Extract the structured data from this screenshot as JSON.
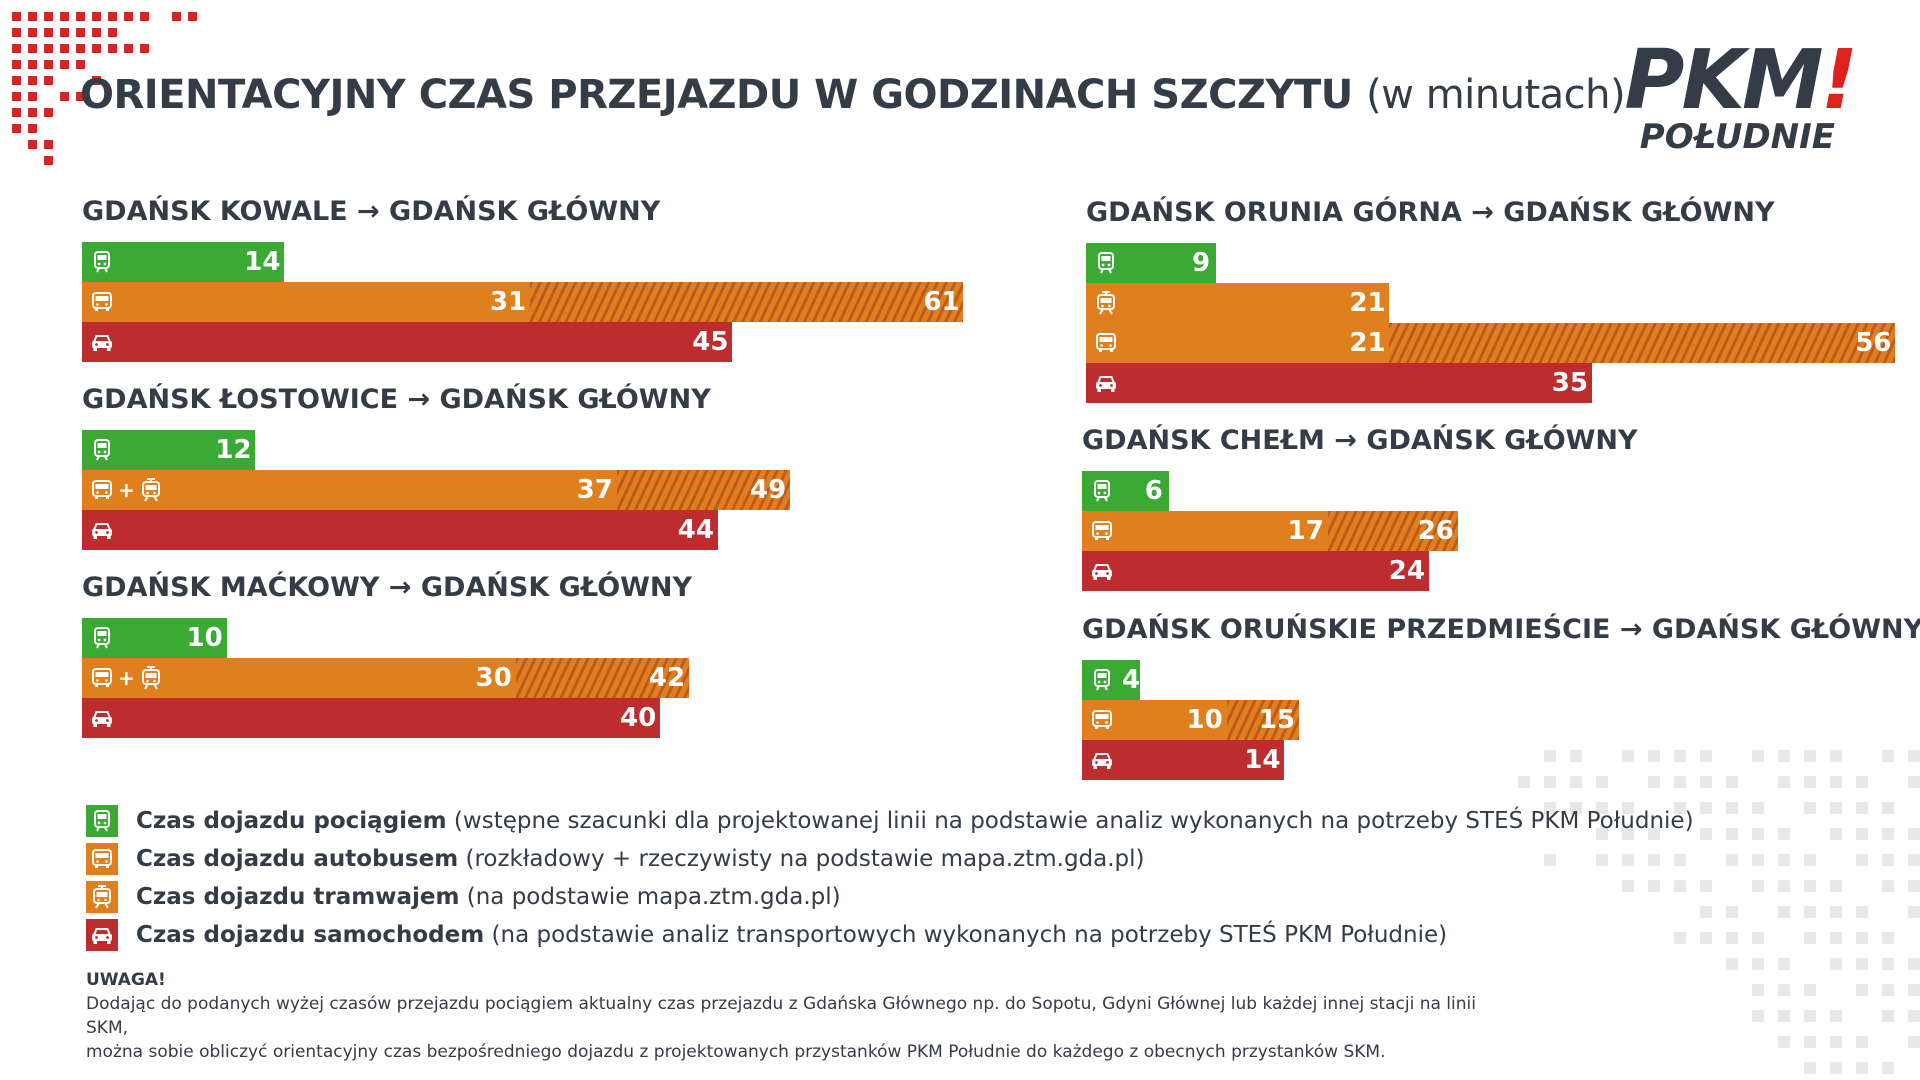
{
  "header": {
    "title": "ORIENTACYJNY CZAS PRZEJAZDU W GODZINACH SZCZYTU",
    "subtitle": "(w minutach)"
  },
  "logo": {
    "main": "PKM",
    "accent": "!",
    "sub": "POŁUDNIE"
  },
  "colors": {
    "train": "#3aaa35",
    "bus": "#e07f1e",
    "tram": "#e07f1e",
    "car": "#bd2c2e",
    "text": "#333c47",
    "accent": "#e0221f"
  },
  "chart_data": {
    "type": "bar",
    "orientation": "horizontal",
    "unit": "minutes",
    "routes": [
      {
        "name": "GDAŃSK KOWALE → GDAŃSK GŁÓWNY",
        "bars": [
          {
            "mode": "train",
            "value": 14
          },
          {
            "mode": "bus",
            "value": 31,
            "max": 61
          },
          {
            "mode": "car",
            "value": 45
          }
        ]
      },
      {
        "name": "GDAŃSK ŁOSTOWICE → GDAŃSK GŁÓWNY",
        "bars": [
          {
            "mode": "train",
            "value": 12
          },
          {
            "mode": "bus+tram",
            "value": 37,
            "max": 49
          },
          {
            "mode": "car",
            "value": 44
          }
        ]
      },
      {
        "name": "GDAŃSK MAĆKOWY → GDAŃSK GŁÓWNY",
        "bars": [
          {
            "mode": "train",
            "value": 10
          },
          {
            "mode": "bus+tram",
            "value": 30,
            "max": 42
          },
          {
            "mode": "car",
            "value": 40
          }
        ]
      },
      {
        "name": "GDAŃSK ORUNIA GÓRNA → GDAŃSK GŁÓWNY",
        "bars": [
          {
            "mode": "train",
            "value": 9
          },
          {
            "mode": "tram",
            "value": 21
          },
          {
            "mode": "bus",
            "value": 21,
            "max": 56
          },
          {
            "mode": "car",
            "value": 35
          }
        ]
      },
      {
        "name": "GDAŃSK CHEŁM → GDAŃSK GŁÓWNY",
        "bars": [
          {
            "mode": "train",
            "value": 6
          },
          {
            "mode": "bus",
            "value": 17,
            "max": 26
          },
          {
            "mode": "car",
            "value": 24
          }
        ]
      },
      {
        "name": "GDAŃSK ORUŃSKIE PRZEDMIEŚCIE → GDAŃSK GŁÓWNY",
        "bars": [
          {
            "mode": "train",
            "value": 4
          },
          {
            "mode": "bus",
            "value": 10,
            "max": 15
          },
          {
            "mode": "car",
            "value": 14
          }
        ]
      }
    ]
  },
  "legend": [
    {
      "mode": "train",
      "bold": "Czas dojazdu pociągiem",
      "text": " (wstępne szacunki dla projektowanej linii na podstawie analiz wykonanych na potrzeby STEŚ PKM Południe)"
    },
    {
      "mode": "bus",
      "bold": "Czas dojazdu autobusem",
      "text": " (rozkładowy + rzeczywisty na podstawie mapa.ztm.gda.pl)"
    },
    {
      "mode": "tram",
      "bold": "Czas dojazdu tramwajem",
      "text": " (na podstawie mapa.ztm.gda.pl)"
    },
    {
      "mode": "car",
      "bold": "Czas dojazdu samochodem",
      "text": " (na podstawie analiz transportowych wykonanych na potrzeby STEŚ PKM Południe)"
    }
  ],
  "note": {
    "title": "UWAGA!",
    "line1": "Dodając do podanych wyżej czasów przejazdu pociągiem aktualny czas przejazdu z Gdańska Głównego np. do Sopotu, Gdyni Głównej lub każdej innej stacji na linii SKM,",
    "line2": "można sobie obliczyć orientacyjny czas bezpośredniego dojazdu z projektowanych przystanków PKM Południe do każdego z obecnych przystanków SKM."
  }
}
